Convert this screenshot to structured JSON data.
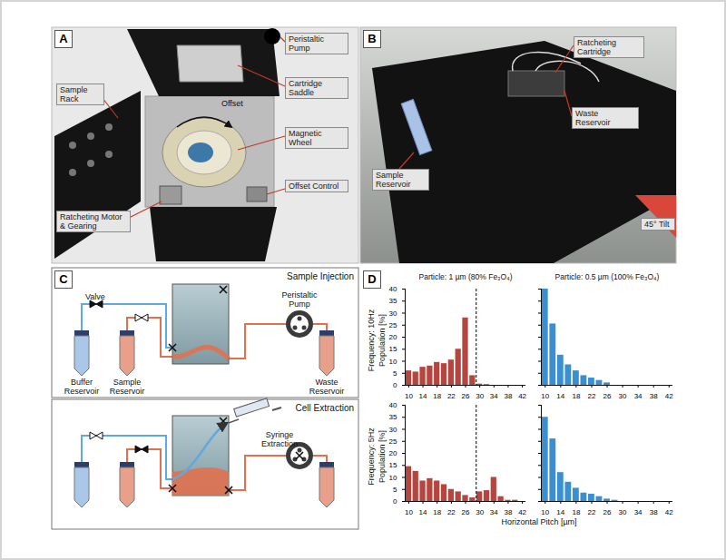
{
  "panels": {
    "A": {
      "label": "A",
      "annotations": {
        "peristaltic_pump": "Peristaltic Pump",
        "cartridge_saddle": "Cartridge Saddle",
        "magnetic_wheel": "Magnetic Wheel",
        "offset_control": "Offset Control",
        "sample_rack": "Sample Rack",
        "motor": "Ratcheting Motor & Gearing",
        "offset": "Offset"
      }
    },
    "B": {
      "label": "B",
      "annotations": {
        "ratcheting_cartridge": "Ratcheting Cartridge",
        "waste_reservoir": "Waste Reservoir",
        "sample_reservoir": "Sample Reservoir",
        "tilt": "45° Tilt"
      }
    },
    "C": {
      "label": "C",
      "injection": {
        "title": "Sample Injection",
        "valve": "Valve",
        "pump": "Peristaltic Pump",
        "buffer": "Buffer Reservoir",
        "sample": "Sample Reservoir",
        "waste": "Waste Reservoir"
      },
      "extraction": {
        "title": "Cell Extraction",
        "syringe": "Syringe Extraction"
      }
    },
    "D": {
      "label": "D",
      "column_titles": [
        "Particle: 1 µm (80% Fe₃O₄)",
        "Particle: 0.5 µm (100% Fe₃O₄)"
      ],
      "row_titles": [
        "Frequency: 10Hz",
        "Frequency: 5Hz"
      ],
      "x_label": "Horizontal Pitch [µm]",
      "y_label": "Population [%]"
    }
  },
  "chart_data": [
    {
      "type": "bar",
      "x": [
        10,
        12,
        14,
        16,
        18,
        20,
        22,
        24,
        26,
        28,
        30,
        32
      ],
      "values": [
        6,
        5.5,
        7.5,
        8,
        9.5,
        9,
        10.5,
        15,
        28,
        4,
        0.5,
        0.3
      ],
      "color": "#b5463f",
      "xlim": [
        9,
        43
      ],
      "xticks": [
        10,
        14,
        18,
        22,
        26,
        30,
        34,
        38,
        42
      ],
      "ylim": [
        0,
        40
      ],
      "yticks": [
        0,
        5,
        10,
        15,
        20,
        25,
        30,
        35,
        40
      ],
      "reference_x": 29
    },
    {
      "type": "bar",
      "x": [
        10,
        12,
        14,
        16,
        18,
        20,
        22,
        24,
        26
      ],
      "values": [
        40,
        25.5,
        12.5,
        8.5,
        6,
        4,
        3,
        2,
        1
      ],
      "color": "#3a8fd1",
      "xlim": [
        9,
        43
      ],
      "xticks": [
        10,
        14,
        18,
        22,
        26,
        30,
        34,
        38,
        42
      ],
      "ylim": [
        0,
        40
      ],
      "yticks": [
        0,
        5,
        10,
        15,
        20,
        25,
        30,
        35,
        40
      ],
      "tick_labels": "x"
    },
    {
      "type": "bar",
      "x": [
        10,
        12,
        14,
        16,
        18,
        20,
        22,
        24,
        26,
        28,
        30,
        32,
        34,
        36,
        38,
        40
      ],
      "values": [
        14.5,
        12.5,
        8.5,
        9.5,
        8.5,
        7,
        5,
        4,
        2.5,
        1.5,
        4,
        4.5,
        10,
        2,
        0.5,
        0.5
      ],
      "color": "#b5463f",
      "xlim": [
        9,
        43
      ],
      "xticks": [
        10,
        14,
        18,
        22,
        26,
        30,
        34,
        38,
        42
      ],
      "ylim": [
        0,
        40
      ],
      "yticks": [
        0,
        5,
        10,
        15,
        20,
        25,
        30,
        35,
        40
      ],
      "reference_x": 29
    },
    {
      "type": "bar",
      "x": [
        10,
        12,
        14,
        16,
        18,
        20,
        22,
        24,
        26,
        28
      ],
      "values": [
        35,
        26,
        12,
        8,
        5.5,
        3.5,
        3,
        2,
        1,
        0.5
      ],
      "color": "#3a8fd1",
      "xlim": [
        9,
        43
      ],
      "xticks": [
        10,
        14,
        18,
        22,
        26,
        30,
        34,
        38,
        42
      ],
      "ylim": [
        0,
        40
      ],
      "yticks": [
        0,
        5,
        10,
        15,
        20,
        25,
        30,
        35,
        40
      ],
      "tick_labels": "x"
    }
  ]
}
